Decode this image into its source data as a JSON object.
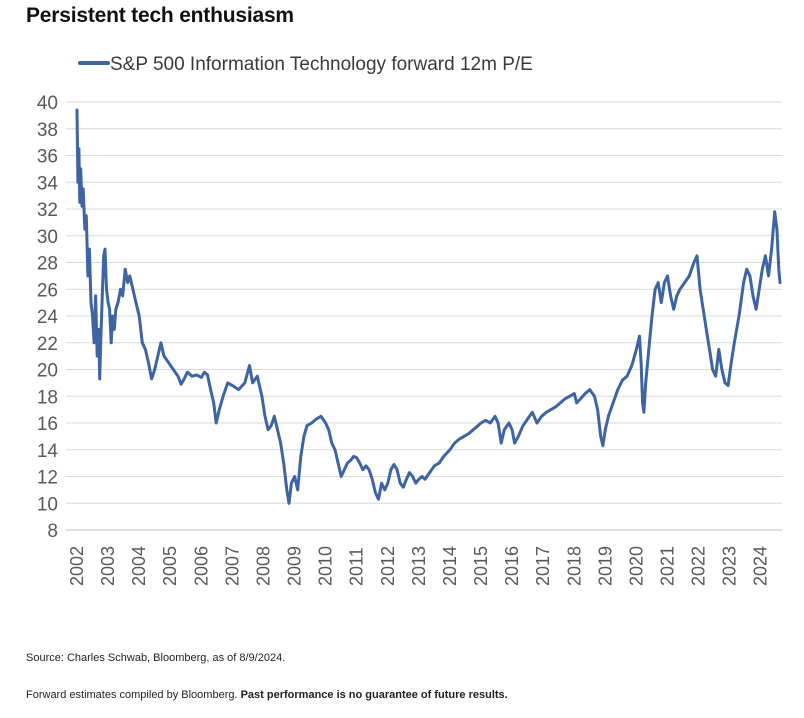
{
  "title": "Persistent tech enthusiasm",
  "source": "Source: Charles Schwab, Bloomberg, as of 8/9/2024.",
  "note_plain": "Forward estimates compiled by Bloomberg. ",
  "note_bold": "Past performance is no guarantee of future results.",
  "colors": {
    "series": "#3e64a3",
    "grid": "#d9d9d9",
    "axis_text": "#595959"
  },
  "chart_data": {
    "type": "line",
    "title": "Persistent tech enthusiasm",
    "xlabel": "",
    "ylabel": "",
    "ylim": [
      8,
      40
    ],
    "xlim": [
      2002.0,
      2024.62
    ],
    "y_ticks": [
      8,
      10,
      12,
      14,
      16,
      18,
      20,
      22,
      24,
      26,
      28,
      30,
      32,
      34,
      36,
      38,
      40
    ],
    "x_ticks": [
      "2002",
      "2003",
      "2004",
      "2005",
      "2006",
      "2007",
      "2008",
      "2009",
      "2010",
      "2011",
      "2012",
      "2013",
      "2014",
      "2015",
      "2016",
      "2017",
      "2018",
      "2019",
      "2020",
      "2021",
      "2022",
      "2023",
      "2024"
    ],
    "grid": "horizontal",
    "legend_position": "top-left",
    "series": [
      {
        "name": "S&P 500 Information Technology forward 12m P/E",
        "points": [
          [
            2002.0,
            39.4
          ],
          [
            2002.03,
            34.0
          ],
          [
            2002.06,
            36.5
          ],
          [
            2002.09,
            32.5
          ],
          [
            2002.12,
            35.0
          ],
          [
            2002.16,
            32.2
          ],
          [
            2002.2,
            33.5
          ],
          [
            2002.25,
            30.5
          ],
          [
            2002.3,
            31.5
          ],
          [
            2002.35,
            27.0
          ],
          [
            2002.4,
            29.0
          ],
          [
            2002.45,
            25.0
          ],
          [
            2002.5,
            24.0
          ],
          [
            2002.55,
            22.0
          ],
          [
            2002.6,
            25.5
          ],
          [
            2002.65,
            21.0
          ],
          [
            2002.7,
            23.0
          ],
          [
            2002.73,
            19.3
          ],
          [
            2002.77,
            22.5
          ],
          [
            2002.82,
            26.0
          ],
          [
            2002.86,
            28.5
          ],
          [
            2002.9,
            29.0
          ],
          [
            2002.95,
            26.0
          ],
          [
            2003.0,
            25.0
          ],
          [
            2003.05,
            24.5
          ],
          [
            2003.1,
            22.0
          ],
          [
            2003.15,
            24.0
          ],
          [
            2003.2,
            23.0
          ],
          [
            2003.25,
            24.5
          ],
          [
            2003.32,
            25.0
          ],
          [
            2003.4,
            26.0
          ],
          [
            2003.47,
            25.5
          ],
          [
            2003.55,
            27.5
          ],
          [
            2003.63,
            26.5
          ],
          [
            2003.7,
            27.0
          ],
          [
            2003.8,
            26.0
          ],
          [
            2003.9,
            25.0
          ],
          [
            2004.0,
            24.0
          ],
          [
            2004.1,
            22.0
          ],
          [
            2004.2,
            21.5
          ],
          [
            2004.3,
            20.5
          ],
          [
            2004.4,
            19.3
          ],
          [
            2004.5,
            20.0
          ],
          [
            2004.6,
            21.0
          ],
          [
            2004.7,
            22.0
          ],
          [
            2004.8,
            21.0
          ],
          [
            2004.95,
            20.5
          ],
          [
            2005.1,
            20.0
          ],
          [
            2005.25,
            19.5
          ],
          [
            2005.35,
            18.9
          ],
          [
            2005.45,
            19.3
          ],
          [
            2005.55,
            19.8
          ],
          [
            2005.7,
            19.5
          ],
          [
            2005.85,
            19.6
          ],
          [
            2006.0,
            19.4
          ],
          [
            2006.1,
            19.8
          ],
          [
            2006.2,
            19.6
          ],
          [
            2006.3,
            18.5
          ],
          [
            2006.4,
            17.5
          ],
          [
            2006.48,
            16.0
          ],
          [
            2006.58,
            17.0
          ],
          [
            2006.7,
            18.0
          ],
          [
            2006.85,
            19.0
          ],
          [
            2007.0,
            18.8
          ],
          [
            2007.2,
            18.5
          ],
          [
            2007.4,
            19.0
          ],
          [
            2007.55,
            20.3
          ],
          [
            2007.65,
            19.0
          ],
          [
            2007.8,
            19.5
          ],
          [
            2007.95,
            18.0
          ],
          [
            2008.05,
            16.5
          ],
          [
            2008.15,
            15.5
          ],
          [
            2008.25,
            15.8
          ],
          [
            2008.35,
            16.5
          ],
          [
            2008.45,
            15.5
          ],
          [
            2008.55,
            14.5
          ],
          [
            2008.65,
            13.0
          ],
          [
            2008.75,
            11.0
          ],
          [
            2008.82,
            10.0
          ],
          [
            2008.9,
            11.5
          ],
          [
            2009.0,
            12.0
          ],
          [
            2009.1,
            11.0
          ],
          [
            2009.2,
            13.5
          ],
          [
            2009.3,
            15.0
          ],
          [
            2009.4,
            15.8
          ],
          [
            2009.55,
            16.0
          ],
          [
            2009.7,
            16.3
          ],
          [
            2009.85,
            16.5
          ],
          [
            2010.0,
            16.0
          ],
          [
            2010.1,
            15.5
          ],
          [
            2010.2,
            14.5
          ],
          [
            2010.3,
            14.0
          ],
          [
            2010.4,
            13.0
          ],
          [
            2010.5,
            12.0
          ],
          [
            2010.6,
            12.5
          ],
          [
            2010.7,
            13.0
          ],
          [
            2010.8,
            13.2
          ],
          [
            2010.9,
            13.5
          ],
          [
            2011.0,
            13.4
          ],
          [
            2011.1,
            13.0
          ],
          [
            2011.2,
            12.5
          ],
          [
            2011.3,
            12.8
          ],
          [
            2011.4,
            12.5
          ],
          [
            2011.5,
            11.8
          ],
          [
            2011.6,
            10.8
          ],
          [
            2011.7,
            10.3
          ],
          [
            2011.8,
            11.5
          ],
          [
            2011.9,
            11.0
          ],
          [
            2012.0,
            11.5
          ],
          [
            2012.1,
            12.5
          ],
          [
            2012.2,
            12.9
          ],
          [
            2012.3,
            12.5
          ],
          [
            2012.4,
            11.5
          ],
          [
            2012.5,
            11.2
          ],
          [
            2012.6,
            11.8
          ],
          [
            2012.7,
            12.3
          ],
          [
            2012.8,
            12.0
          ],
          [
            2012.9,
            11.5
          ],
          [
            2013.0,
            11.8
          ],
          [
            2013.1,
            12.0
          ],
          [
            2013.2,
            11.8
          ],
          [
            2013.35,
            12.3
          ],
          [
            2013.5,
            12.8
          ],
          [
            2013.65,
            13.0
          ],
          [
            2013.8,
            13.5
          ],
          [
            2014.0,
            14.0
          ],
          [
            2014.15,
            14.5
          ],
          [
            2014.3,
            14.8
          ],
          [
            2014.45,
            15.0
          ],
          [
            2014.6,
            15.2
          ],
          [
            2014.75,
            15.5
          ],
          [
            2014.9,
            15.8
          ],
          [
            2015.0,
            16.0
          ],
          [
            2015.15,
            16.2
          ],
          [
            2015.3,
            16.0
          ],
          [
            2015.45,
            16.5
          ],
          [
            2015.55,
            16.0
          ],
          [
            2015.65,
            14.5
          ],
          [
            2015.75,
            15.5
          ],
          [
            2015.9,
            16.0
          ],
          [
            2016.0,
            15.5
          ],
          [
            2016.08,
            14.5
          ],
          [
            2016.2,
            15.0
          ],
          [
            2016.35,
            15.8
          ],
          [
            2016.5,
            16.3
          ],
          [
            2016.65,
            16.8
          ],
          [
            2016.8,
            16.0
          ],
          [
            2016.95,
            16.5
          ],
          [
            2017.1,
            16.8
          ],
          [
            2017.25,
            17.0
          ],
          [
            2017.4,
            17.2
          ],
          [
            2017.55,
            17.5
          ],
          [
            2017.7,
            17.8
          ],
          [
            2017.85,
            18.0
          ],
          [
            2018.0,
            18.2
          ],
          [
            2018.08,
            17.5
          ],
          [
            2018.2,
            17.8
          ],
          [
            2018.35,
            18.2
          ],
          [
            2018.5,
            18.5
          ],
          [
            2018.65,
            18.0
          ],
          [
            2018.75,
            17.0
          ],
          [
            2018.85,
            15.0
          ],
          [
            2018.92,
            14.3
          ],
          [
            2019.0,
            15.5
          ],
          [
            2019.1,
            16.5
          ],
          [
            2019.25,
            17.5
          ],
          [
            2019.4,
            18.5
          ],
          [
            2019.55,
            19.2
          ],
          [
            2019.7,
            19.5
          ],
          [
            2019.85,
            20.3
          ],
          [
            2020.0,
            21.5
          ],
          [
            2020.1,
            22.5
          ],
          [
            2020.15,
            20.5
          ],
          [
            2020.2,
            17.5
          ],
          [
            2020.24,
            16.8
          ],
          [
            2020.3,
            19.0
          ],
          [
            2020.4,
            21.5
          ],
          [
            2020.5,
            24.0
          ],
          [
            2020.6,
            26.0
          ],
          [
            2020.7,
            26.5
          ],
          [
            2020.8,
            25.0
          ],
          [
            2020.9,
            26.5
          ],
          [
            2021.0,
            27.0
          ],
          [
            2021.1,
            25.5
          ],
          [
            2021.2,
            24.5
          ],
          [
            2021.3,
            25.5
          ],
          [
            2021.4,
            26.0
          ],
          [
            2021.55,
            26.5
          ],
          [
            2021.7,
            27.0
          ],
          [
            2021.85,
            28.0
          ],
          [
            2021.95,
            28.5
          ],
          [
            2022.05,
            26.0
          ],
          [
            2022.15,
            24.5
          ],
          [
            2022.25,
            23.0
          ],
          [
            2022.35,
            21.5
          ],
          [
            2022.45,
            20.0
          ],
          [
            2022.55,
            19.5
          ],
          [
            2022.65,
            21.5
          ],
          [
            2022.75,
            20.0
          ],
          [
            2022.85,
            19.0
          ],
          [
            2022.95,
            18.8
          ],
          [
            2023.05,
            20.5
          ],
          [
            2023.15,
            22.0
          ],
          [
            2023.3,
            24.0
          ],
          [
            2023.45,
            26.5
          ],
          [
            2023.55,
            27.5
          ],
          [
            2023.65,
            27.0
          ],
          [
            2023.75,
            25.5
          ],
          [
            2023.85,
            24.5
          ],
          [
            2023.95,
            26.0
          ],
          [
            2024.05,
            27.5
          ],
          [
            2024.15,
            28.5
          ],
          [
            2024.25,
            27.0
          ],
          [
            2024.35,
            29.0
          ],
          [
            2024.45,
            31.8
          ],
          [
            2024.52,
            30.5
          ],
          [
            2024.58,
            27.5
          ],
          [
            2024.62,
            26.5
          ]
        ]
      }
    ]
  }
}
